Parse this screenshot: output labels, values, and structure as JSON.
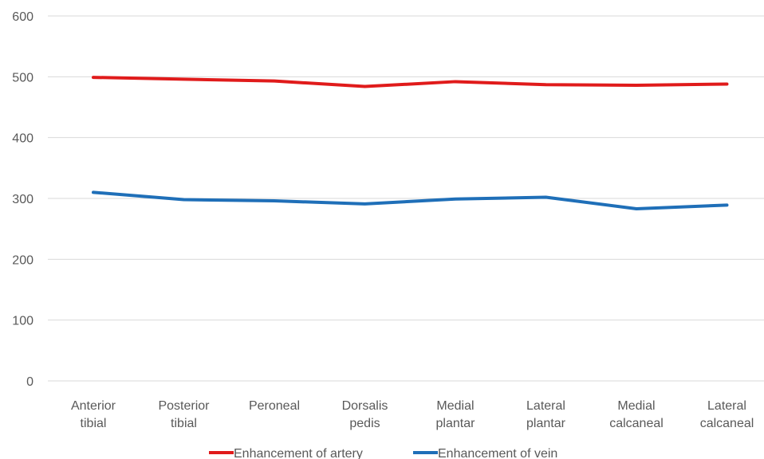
{
  "chart_data": {
    "type": "line",
    "categories": [
      [
        "Anterior",
        "tibial"
      ],
      [
        "Posterior",
        "tibial"
      ],
      [
        "Peroneal"
      ],
      [
        "Dorsalis",
        "pedis"
      ],
      [
        "Medial",
        "plantar"
      ],
      [
        "Lateral",
        "plantar"
      ],
      [
        "Medial",
        "calcaneal"
      ],
      [
        "Lateral",
        "calcaneal"
      ]
    ],
    "series": [
      {
        "name": "Enhancement of artery",
        "color": "#e01b1b",
        "values": [
          499,
          496,
          493,
          484,
          492,
          487,
          486,
          488
        ]
      },
      {
        "name": "Enhancement of vein",
        "color": "#1f6fb8",
        "values": [
          310,
          298,
          296,
          291,
          299,
          302,
          283,
          289
        ]
      }
    ],
    "ylim": [
      0,
      600
    ],
    "yticks": [
      0,
      100,
      200,
      300,
      400,
      500,
      600
    ],
    "grid": true,
    "legend_position": "bottom",
    "gridline_color": "#d9d9d9",
    "tick_label_color": "#595959"
  }
}
